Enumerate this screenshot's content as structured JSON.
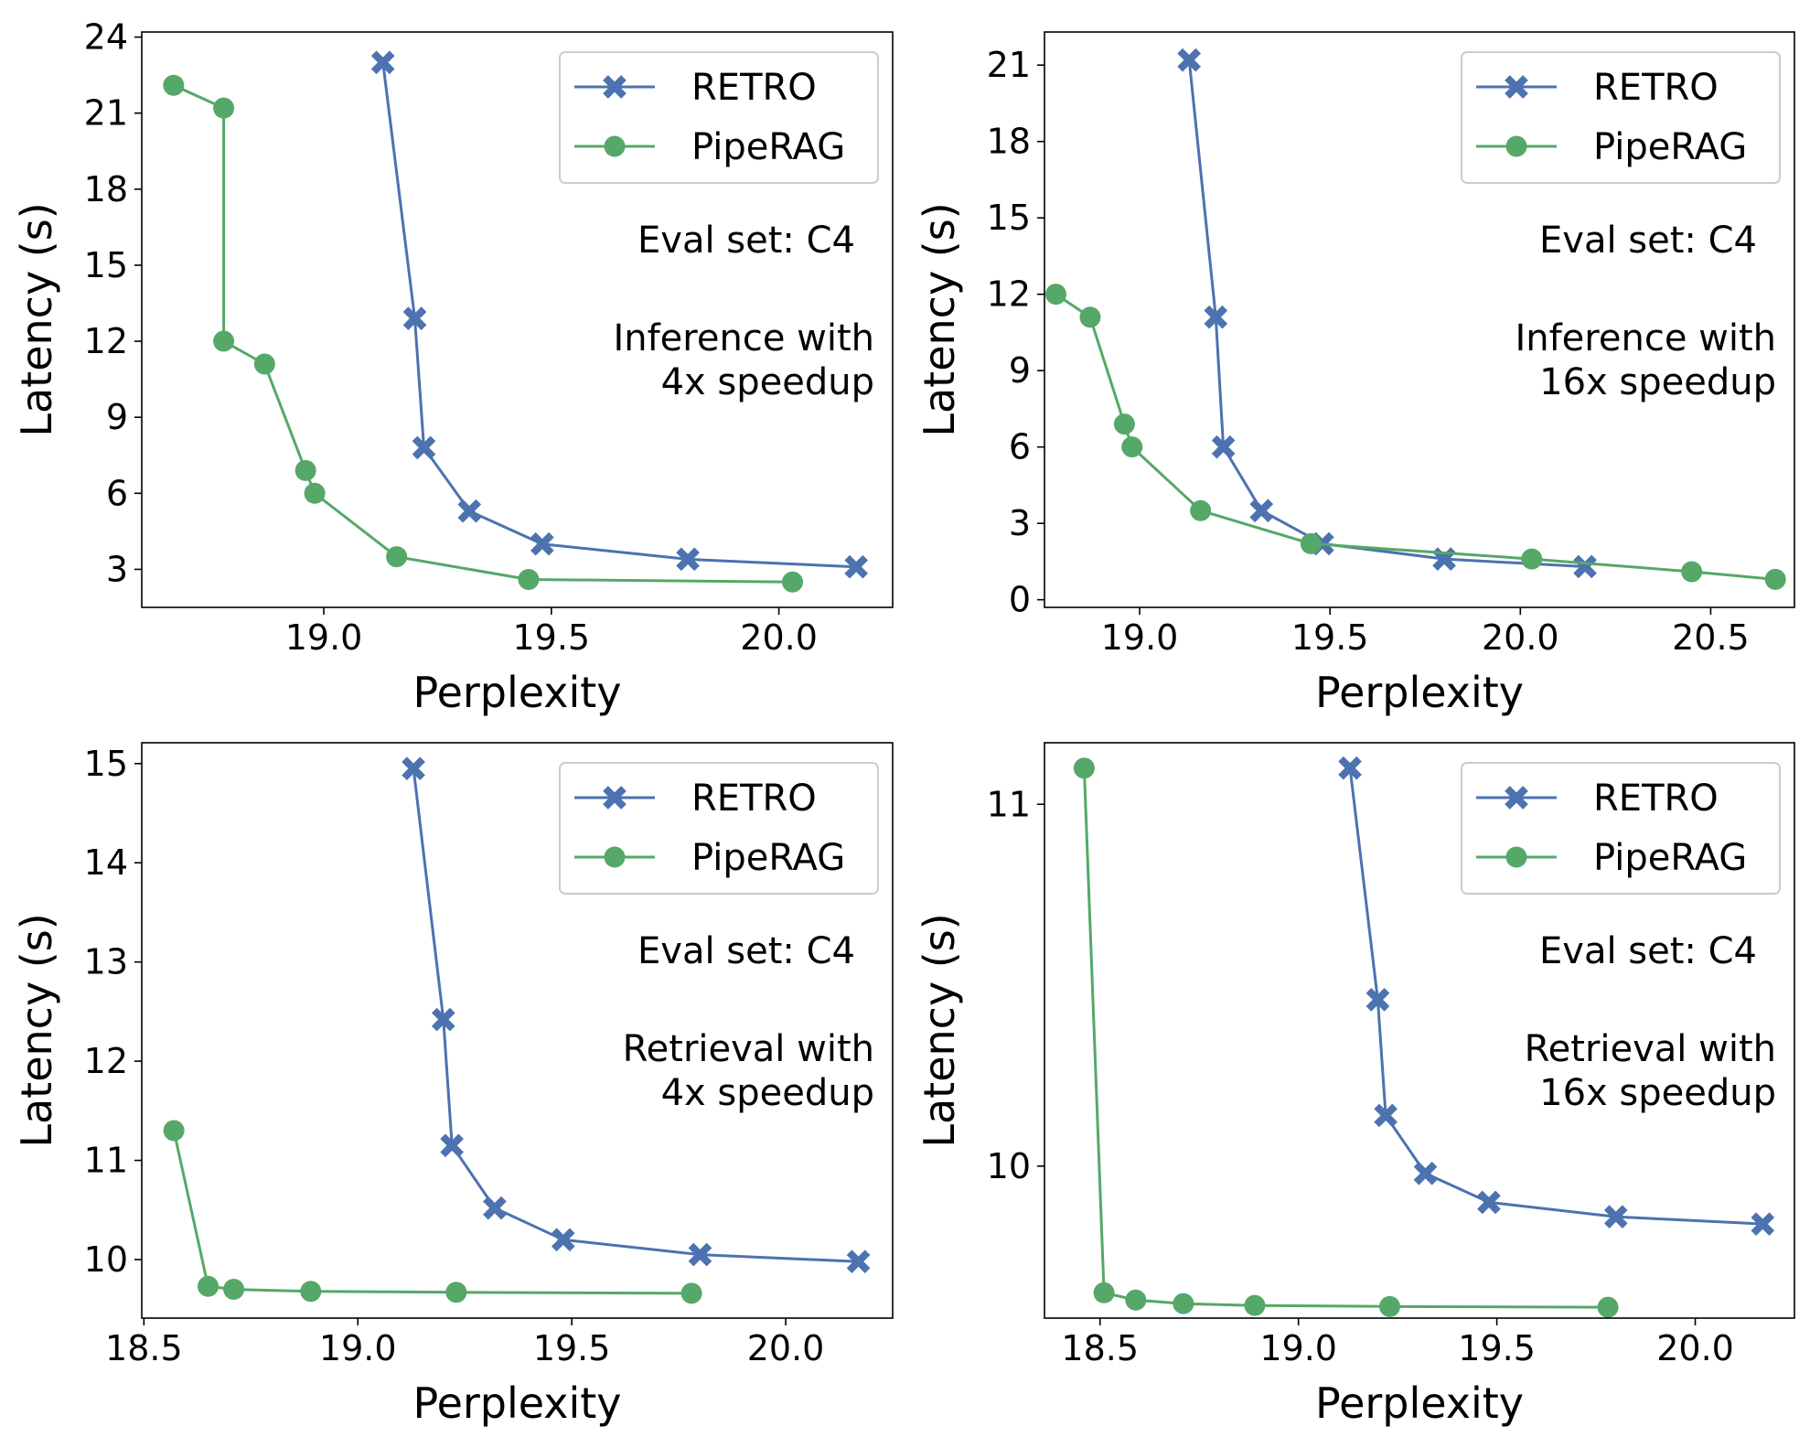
{
  "colors": {
    "retro": "#4c72b0",
    "piperag": "#55a868"
  },
  "chart_data": [
    {
      "type": "line",
      "xlabel": "Perplexity",
      "ylabel": "Latency (s)",
      "xlim": [
        18.6,
        20.25
      ],
      "ylim": [
        1.5,
        24.2
      ],
      "xticks": [
        19.0,
        19.5,
        20.0
      ],
      "xtick_labels": [
        "19.0",
        "19.5",
        "20.0"
      ],
      "yticks": [
        3,
        6,
        9,
        12,
        15,
        18,
        21,
        24
      ],
      "ytick_labels": [
        "3",
        "6",
        "9",
        "12",
        "15",
        "18",
        "21",
        "24"
      ],
      "legend": [
        "RETRO",
        "PipeRAG"
      ],
      "legend_position": "top-right",
      "annotation": {
        "eval": "Eval set: C4",
        "line1": "Inference with",
        "line2": "4x speedup"
      },
      "series": [
        {
          "name": "RETRO",
          "marker": "x",
          "x": [
            19.13,
            19.2,
            19.22,
            19.32,
            19.48,
            19.8,
            20.17
          ],
          "y": [
            23.0,
            12.9,
            7.8,
            5.3,
            4.0,
            3.4,
            3.1
          ]
        },
        {
          "name": "PipeRAG",
          "marker": "o",
          "x": [
            18.67,
            18.78,
            18.78,
            18.87,
            18.96,
            18.98,
            19.16,
            19.45,
            20.03
          ],
          "y": [
            22.1,
            21.2,
            12.0,
            11.1,
            6.9,
            6.0,
            3.5,
            2.6,
            2.5
          ]
        }
      ]
    },
    {
      "type": "line",
      "xlabel": "Perplexity",
      "ylabel": "Latency (s)",
      "xlim": [
        18.75,
        20.72
      ],
      "ylim": [
        -0.3,
        22.3
      ],
      "xticks": [
        19.0,
        19.5,
        20.0,
        20.5
      ],
      "xtick_labels": [
        "19.0",
        "19.5",
        "20.0",
        "20.5"
      ],
      "yticks": [
        0,
        3,
        6,
        9,
        12,
        15,
        18,
        21
      ],
      "ytick_labels": [
        "0",
        "3",
        "6",
        "9",
        "12",
        "15",
        "18",
        "21"
      ],
      "legend": [
        "RETRO",
        "PipeRAG"
      ],
      "legend_position": "top-right",
      "annotation": {
        "eval": "Eval set: C4",
        "line1": "Inference with",
        "line2": "16x speedup"
      },
      "series": [
        {
          "name": "RETRO",
          "marker": "x",
          "x": [
            19.13,
            19.2,
            19.22,
            19.32,
            19.48,
            19.8,
            20.17
          ],
          "y": [
            21.2,
            11.1,
            6.0,
            3.5,
            2.2,
            1.6,
            1.3
          ]
        },
        {
          "name": "PipeRAG",
          "marker": "o",
          "x": [
            18.78,
            18.87,
            18.96,
            18.98,
            19.16,
            19.45,
            20.03,
            20.45,
            20.67
          ],
          "y": [
            12.0,
            11.1,
            6.9,
            6.0,
            3.5,
            2.2,
            1.6,
            1.1,
            0.8
          ]
        }
      ]
    },
    {
      "type": "line",
      "xlabel": "Perplexity",
      "ylabel": "Latency (s)",
      "xlim": [
        18.495,
        20.25
      ],
      "ylim": [
        9.41,
        15.21
      ],
      "xticks": [
        18.5,
        19.0,
        19.5,
        20.0
      ],
      "xtick_labels": [
        "18.5",
        "19.0",
        "19.5",
        "20.0"
      ],
      "yticks": [
        10,
        11,
        12,
        13,
        14,
        15
      ],
      "ytick_labels": [
        "10",
        "11",
        "12",
        "13",
        "14",
        "15"
      ],
      "legend": [
        "RETRO",
        "PipeRAG"
      ],
      "legend_position": "top-right",
      "annotation": {
        "eval": "Eval set: C4",
        "line1": "Retrieval with",
        "line2": "4x speedup"
      },
      "series": [
        {
          "name": "RETRO",
          "marker": "x",
          "x": [
            19.13,
            19.2,
            19.22,
            19.32,
            19.48,
            19.8,
            20.17
          ],
          "y": [
            14.95,
            12.42,
            11.15,
            10.52,
            10.2,
            10.05,
            9.98
          ]
        },
        {
          "name": "PipeRAG",
          "marker": "o",
          "x": [
            18.57,
            18.65,
            18.71,
            18.89,
            19.23,
            19.78
          ],
          "y": [
            11.3,
            9.73,
            9.7,
            9.68,
            9.67,
            9.66
          ]
        }
      ]
    },
    {
      "type": "line",
      "xlabel": "Perplexity",
      "ylabel": "Latency (s)",
      "xlim": [
        18.36,
        20.25
      ],
      "ylim": [
        9.58,
        11.17
      ],
      "xticks": [
        18.5,
        19.0,
        19.5,
        20.0
      ],
      "xtick_labels": [
        "18.5",
        "19.0",
        "19.5",
        "20.0"
      ],
      "yticks": [
        10,
        11
      ],
      "ytick_labels": [
        "10",
        "11"
      ],
      "legend": [
        "RETRO",
        "PipeRAG"
      ],
      "legend_position": "top-right",
      "annotation": {
        "eval": "Eval set: C4",
        "line1": "Retrieval with",
        "line2": "16x speedup"
      },
      "series": [
        {
          "name": "RETRO",
          "marker": "x",
          "x": [
            19.13,
            19.2,
            19.22,
            19.32,
            19.48,
            19.8,
            20.17
          ],
          "y": [
            11.1,
            10.46,
            10.14,
            9.98,
            9.9,
            9.86,
            9.84
          ]
        },
        {
          "name": "PipeRAG",
          "marker": "o",
          "x": [
            18.46,
            18.51,
            18.59,
            18.71,
            18.89,
            19.23,
            19.78
          ],
          "y": [
            11.1,
            9.65,
            9.63,
            9.62,
            9.615,
            9.612,
            9.61
          ]
        }
      ]
    }
  ]
}
